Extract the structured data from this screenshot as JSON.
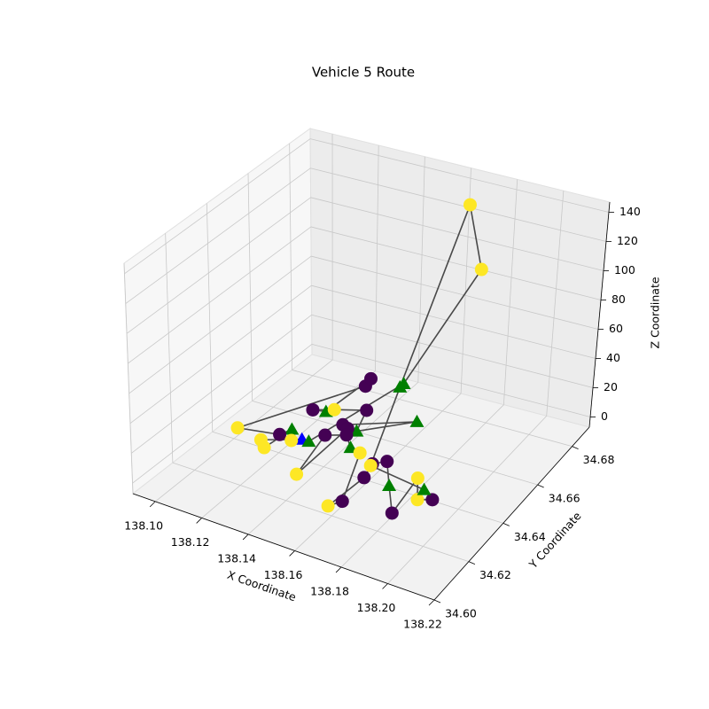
{
  "chart_data": {
    "type": "scatter3d",
    "title": "Vehicle 5 Route",
    "xlabel": "X Coordinate",
    "ylabel": "Y Coordinate",
    "zlabel": "Z Coordinate",
    "xlim": [
      138.0904,
      138.22
    ],
    "ylim": [
      34.6,
      34.69
    ],
    "zlim": [
      -7,
      147
    ],
    "xticks": [
      {
        "value": 138.1,
        "label": "138.10"
      },
      {
        "value": 138.12,
        "label": "138.12"
      },
      {
        "value": 138.14,
        "label": "138.14"
      },
      {
        "value": 138.16,
        "label": "138.16"
      },
      {
        "value": 138.18,
        "label": "138.18"
      },
      {
        "value": 138.2,
        "label": "138.20"
      },
      {
        "value": 138.22,
        "label": "138.22"
      }
    ],
    "yticks": [
      {
        "value": 34.6,
        "label": "34.60"
      },
      {
        "value": 34.62,
        "label": "34.62"
      },
      {
        "value": 34.64,
        "label": "34.64"
      },
      {
        "value": 34.66,
        "label": "34.66"
      },
      {
        "value": 34.68,
        "label": "34.68"
      }
    ],
    "zticks": [
      0,
      20,
      40,
      60,
      80,
      100,
      120,
      140
    ],
    "grid": true,
    "route_closed": true,
    "line_color": "#404040",
    "x": [
      138.132,
      138.119,
      138.123,
      138.125,
      138.123,
      138.107,
      138.144,
      138.143,
      138.135,
      138.13,
      138.137,
      138.148,
      138.147,
      138.164,
      138.14,
      138.143,
      138.143,
      138.138,
      138.145,
      138.151,
      138.156,
      138.167,
      138.164,
      138.166,
      138.164,
      138.168,
      138.177,
      138.187,
      138.184,
      138.191,
      138.196,
      138.19,
      138.164,
      138.156,
      138.17,
      138.177,
      138.156,
      138.135,
      138.129
    ],
    "y": [
      34.638,
      34.632,
      34.629,
      34.641,
      34.637,
      34.634,
      34.657,
      34.661,
      34.647,
      34.646,
      34.649,
      34.653,
      34.649,
      34.661,
      34.65,
      34.649,
      34.622,
      34.643,
      34.646,
      34.641,
      34.64,
      34.617,
      34.613,
      34.63,
      34.637,
      34.64,
      34.63,
      34.619,
      34.637,
      34.628,
      34.63,
      34.633,
      34.636,
      34.661,
      34.678,
      34.677,
      34.663,
      34.638,
      34.636
    ],
    "z": [
      10,
      10,
      10,
      10,
      10,
      10,
      30,
      30,
      20,
      20,
      20,
      20,
      10,
      10,
      10,
      10,
      10,
      10,
      10,
      10,
      10,
      10,
      10,
      10,
      10,
      10,
      10,
      10,
      10,
      10,
      10,
      10,
      10,
      30,
      140,
      100,
      30,
      10,
      10
    ],
    "colors": [
      "#0000ff",
      "#fde725",
      "#fde725",
      "#008000",
      "#440154",
      "#fde725",
      "#440154",
      "#440154",
      "#008000",
      "#440154",
      "#fde725",
      "#440154",
      "#008000",
      "#008000",
      "#440154",
      "#440154",
      "#fde725",
      "#440154",
      "#440154",
      "#008000",
      "#fde725",
      "#440154",
      "#fde725",
      "#440154",
      "#440154",
      "#440154",
      "#008000",
      "#440154",
      "#fde725",
      "#fde725",
      "#440154",
      "#008000",
      "#fde725",
      "#008000",
      "#fde725",
      "#fde725",
      "#008000",
      "#008000",
      "#fde725"
    ],
    "markers": [
      "triangle",
      "circle",
      "circle",
      "triangle",
      "circle",
      "circle",
      "circle",
      "circle",
      "triangle",
      "circle",
      "circle",
      "circle",
      "triangle",
      "triangle",
      "circle",
      "circle",
      "circle",
      "circle",
      "circle",
      "triangle",
      "circle",
      "circle",
      "circle",
      "circle",
      "circle",
      "circle",
      "triangle",
      "circle",
      "circle",
      "circle",
      "circle",
      "triangle",
      "circle",
      "triangle",
      "circle",
      "circle",
      "triangle",
      "triangle",
      "circle"
    ]
  }
}
